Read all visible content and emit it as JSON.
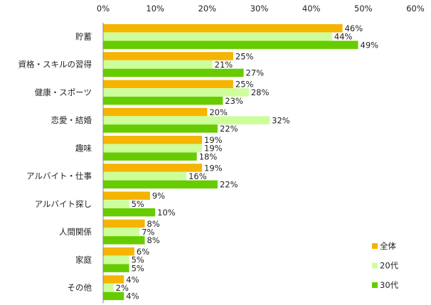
{
  "chart_data": {
    "type": "bar",
    "orientation": "horizontal",
    "categories": [
      "貯蓄",
      "資格・スキルの習得",
      "健康・スポーツ",
      "恋愛・結婚",
      "趣味",
      "アルバイト・仕事",
      "アルバイト探し",
      "人間関係",
      "家庭",
      "その他"
    ],
    "series": [
      {
        "name": "全体",
        "color": "#F5B400",
        "values": [
          46,
          25,
          25,
          20,
          19,
          19,
          9,
          8,
          6,
          4
        ]
      },
      {
        "name": "20代",
        "color": "#CCFF99",
        "values": [
          44,
          21,
          28,
          32,
          19,
          16,
          5,
          7,
          5,
          2
        ]
      },
      {
        "name": "30代",
        "color": "#66CC00",
        "values": [
          49,
          27,
          23,
          22,
          18,
          22,
          10,
          8,
          5,
          4
        ]
      }
    ],
    "xlim": [
      0,
      60
    ],
    "xticks": [
      "0%",
      "10%",
      "20%",
      "30%",
      "40%",
      "50%",
      "60%"
    ],
    "value_suffix": "%",
    "grid": false,
    "legend_position": "bottom-right"
  }
}
